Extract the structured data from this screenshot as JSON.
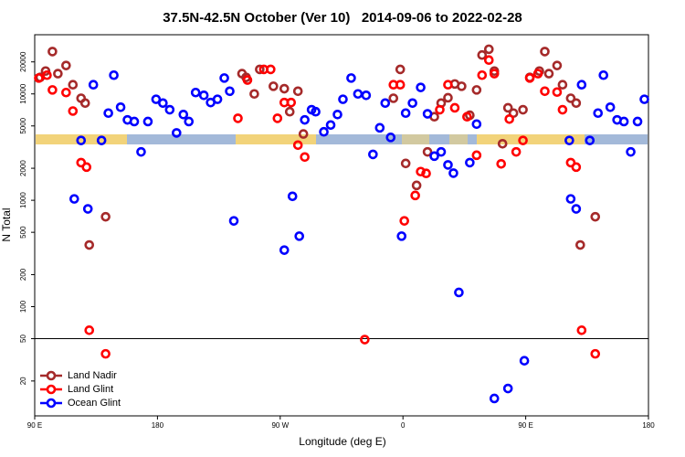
{
  "chart_data": {
    "type": "scatter",
    "title": "37.5N-42.5N October (Ver 10)   2014-09-06 to 2022-02-28",
    "x_label": "Longitude (deg E)",
    "y_label": "N Total",
    "xlim": [
      90,
      540
    ],
    "xticks": [
      {
        "value": 90,
        "label": "90 E"
      },
      {
        "value": 180,
        "label": "180"
      },
      {
        "value": 270,
        "label": "90 W"
      },
      {
        "value": 360,
        "label": "0"
      },
      {
        "value": 450,
        "label": "90 E"
      },
      {
        "value": 540,
        "label": "180"
      }
    ],
    "ylim": [
      9.4,
      36000
    ],
    "y_log": true,
    "yticks": [
      20,
      50,
      100,
      200,
      500,
      1000,
      2000,
      5000,
      10000,
      20000
    ],
    "hline": 50,
    "legend_loc": "lower left",
    "series": [
      {
        "name": "Land Nadir",
        "color": "#a52a2a",
        "x": [
          94,
          98,
          103,
          107,
          113,
          118,
          124,
          127,
          130,
          142,
          242,
          245,
          251,
          255,
          265,
          273,
          277,
          283,
          287,
          353,
          358,
          362,
          370,
          378,
          383,
          388,
          393,
          398,
          403,
          409,
          414,
          418,
          423,
          427,
          433,
          437,
          441,
          448,
          453,
          460,
          464,
          467,
          473,
          477,
          483,
          487,
          490,
          501
        ],
        "values": [
          14300,
          16400,
          25000,
          15500,
          18500,
          12200,
          9100,
          8200,
          380,
          700,
          15500,
          14300,
          10000,
          17000,
          11800,
          11200,
          6800,
          10600,
          4200,
          9100,
          17000,
          2220,
          1380,
          2850,
          6100,
          8200,
          9200,
          12400,
          11800,
          6300,
          10900,
          23200,
          26300,
          16400,
          3400,
          7400,
          6600,
          7100,
          14300,
          16400,
          25000,
          15500,
          18500,
          12200,
          9100,
          8200,
          380,
          700
        ]
      },
      {
        "name": "Land Glint",
        "color": "#ff0000",
        "x": [
          93,
          99,
          103,
          113,
          118,
          124,
          128,
          130,
          142,
          239,
          246,
          258,
          263,
          268,
          273,
          278,
          283,
          288,
          332,
          353,
          358,
          361,
          369,
          373,
          377,
          387,
          393,
          398,
          407,
          414,
          418,
          423,
          427,
          432,
          438,
          443,
          448,
          453,
          459,
          464,
          473,
          477,
          483,
          487,
          491,
          501
        ],
        "values": [
          14100,
          15000,
          10900,
          10300,
          6900,
          2260,
          2050,
          60,
          36,
          5900,
          13500,
          17000,
          17000,
          5900,
          8300,
          8300,
          3300,
          2550,
          49,
          12200,
          12200,
          640,
          1110,
          1860,
          1790,
          7100,
          12200,
          7400,
          6100,
          2650,
          15000,
          20800,
          15500,
          2200,
          5800,
          2850,
          3650,
          14100,
          15500,
          10600,
          10400,
          7100,
          2260,
          2050,
          60,
          36
        ]
      },
      {
        "name": "Ocean Glint",
        "color": "#0000ff",
        "x": [
          119,
          124,
          129,
          133,
          139,
          144,
          148,
          153,
          158,
          163,
          168,
          173,
          179,
          184,
          189,
          194,
          199,
          203,
          208,
          214,
          219,
          224,
          229,
          233,
          236,
          273,
          279,
          284,
          288,
          293,
          296,
          302,
          307,
          312,
          316,
          322,
          327,
          333,
          338,
          343,
          347,
          351,
          359,
          362,
          367,
          373,
          378,
          383,
          388,
          393,
          397,
          401,
          409,
          414,
          427,
          437,
          449,
          483,
          482,
          487,
          491,
          497,
          503,
          507,
          512,
          517,
          522,
          527,
          532,
          537
        ],
        "values": [
          1030,
          3650,
          830,
          12200,
          3650,
          6600,
          15000,
          7500,
          5700,
          5500,
          2850,
          5500,
          8900,
          8200,
          7100,
          4300,
          6400,
          5500,
          10300,
          9700,
          8300,
          8900,
          14100,
          10600,
          640,
          340,
          1090,
          460,
          5700,
          7100,
          6800,
          4400,
          5100,
          6400,
          8900,
          14100,
          10000,
          9700,
          2700,
          4800,
          8200,
          3900,
          460,
          6600,
          8200,
          11500,
          6500,
          2600,
          2850,
          2150,
          1800,
          136,
          2260,
          5200,
          13.7,
          17,
          31,
          1030,
          3650,
          830,
          12200,
          3650,
          6600,
          15000,
          7500,
          5700,
          5500,
          2850,
          5500,
          8900
        ]
      }
    ]
  }
}
